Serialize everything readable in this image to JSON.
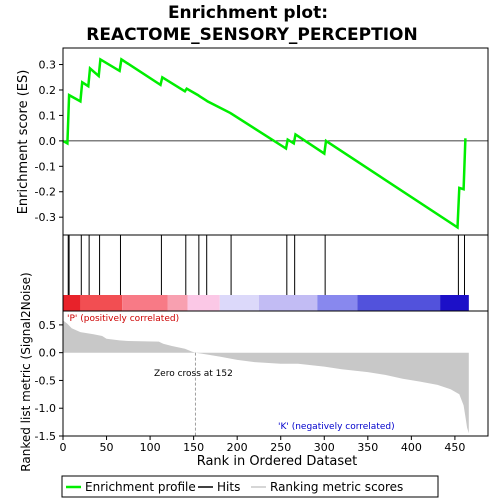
{
  "chart_data": {
    "type": "line",
    "title_line1": "Enrichment plot:",
    "title_line2": "REACTOME_SENSORY_PERCEPTION",
    "es_panel": {
      "ylabel": "Enrichment score (ES)",
      "ylim": [
        -0.37,
        0.365
      ],
      "yticks": [
        -0.3,
        -0.2,
        -0.1,
        0.0,
        0.1,
        0.2,
        0.3
      ],
      "ytick_labels": [
        "-0.3",
        "-0.2",
        "-0.1",
        "0.0",
        "0.1",
        "0.2",
        "0.3"
      ],
      "line_color": "#00ee00",
      "series_name": "Enrichment profile",
      "x": [
        0,
        5,
        7,
        20,
        22,
        29,
        31,
        41,
        43,
        65,
        67,
        112,
        114,
        140,
        142,
        155,
        157,
        164,
        166,
        192,
        194,
        256,
        258,
        265,
        267,
        300,
        302,
        453,
        455,
        460,
        462
      ],
      "y": [
        0.0,
        -0.01,
        0.18,
        0.155,
        0.23,
        0.215,
        0.285,
        0.255,
        0.32,
        0.275,
        0.32,
        0.22,
        0.25,
        0.195,
        0.205,
        0.18,
        0.175,
        0.16,
        0.155,
        0.11,
        0.105,
        -0.03,
        0.005,
        -0.01,
        0.025,
        -0.05,
        0.0,
        -0.34,
        -0.185,
        -0.19,
        0.01
      ]
    },
    "hits": {
      "series_name": "Hits",
      "positions": [
        6,
        7,
        21,
        30,
        42,
        66,
        113,
        141,
        156,
        165,
        193,
        257,
        266,
        301,
        454,
        461
      ]
    },
    "xlim": [
      0,
      488
    ],
    "xticks": [
      0,
      50,
      100,
      150,
      200,
      250,
      300,
      350,
      400,
      450
    ],
    "xtick_labels": [
      "0",
      "50",
      "100",
      "150",
      "200",
      "250",
      "300",
      "350",
      "400",
      "450"
    ],
    "xlabel": "Rank in Ordered Dataset",
    "metric_panel": {
      "ylabel": "Ranked list metric (Signal2Noise)",
      "ylim": [
        -1.5,
        0.75
      ],
      "yticks": [
        -1.5,
        -1.0,
        -0.5,
        0.0,
        0.5
      ],
      "ytick_labels": [
        "-1.5",
        "-1.0",
        "-0.5",
        "0.0",
        "0.5"
      ],
      "series_name": "Ranking metric scores",
      "n_genes": 466,
      "profile_rank": [
        0,
        5,
        10,
        20,
        35,
        45,
        50,
        65,
        75,
        110,
        115,
        125,
        140,
        148,
        152,
        160,
        180,
        200,
        220,
        250,
        270,
        300,
        320,
        350,
        370,
        390,
        410,
        430,
        445,
        455,
        460,
        462,
        464,
        466
      ],
      "profile_value": [
        0.58,
        0.52,
        0.44,
        0.37,
        0.33,
        0.3,
        0.25,
        0.22,
        0.21,
        0.2,
        0.16,
        0.12,
        0.07,
        0.02,
        0.0,
        -0.02,
        -0.07,
        -0.13,
        -0.17,
        -0.2,
        -0.2,
        -0.25,
        -0.3,
        -0.35,
        -0.4,
        -0.47,
        -0.52,
        -0.58,
        -0.66,
        -0.75,
        -0.95,
        -1.15,
        -1.35,
        -1.45
      ],
      "zero_cross_label": "Zero cross at 152",
      "zero_cross_rank": 152,
      "pos_label": "'P' (positively correlated)",
      "neg_label": "'K' (negatively correlated)"
    },
    "colorbar": {
      "segments": [
        {
          "from": 0,
          "to": 20,
          "color": "#e8222a"
        },
        {
          "from": 20,
          "to": 68,
          "color": "#f24e52"
        },
        {
          "from": 68,
          "to": 120,
          "color": "#f87a86"
        },
        {
          "from": 120,
          "to": 143,
          "color": "#f8a0b0"
        },
        {
          "from": 143,
          "to": 180,
          "color": "#fbc8e6"
        },
        {
          "from": 180,
          "to": 225,
          "color": "#dcd9fa"
        },
        {
          "from": 225,
          "to": 292,
          "color": "#c2bcf4"
        },
        {
          "from": 292,
          "to": 338,
          "color": "#8888ee"
        },
        {
          "from": 338,
          "to": 433,
          "color": "#5252dc"
        },
        {
          "from": 433,
          "to": 466,
          "color": "#1c10c8"
        }
      ]
    },
    "legend": [
      {
        "label": "Enrichment profile",
        "color": "#00ee00"
      },
      {
        "label": "Hits",
        "color": "#000000"
      },
      {
        "label": "Ranking metric scores",
        "color": "#c8c8c8"
      }
    ]
  }
}
